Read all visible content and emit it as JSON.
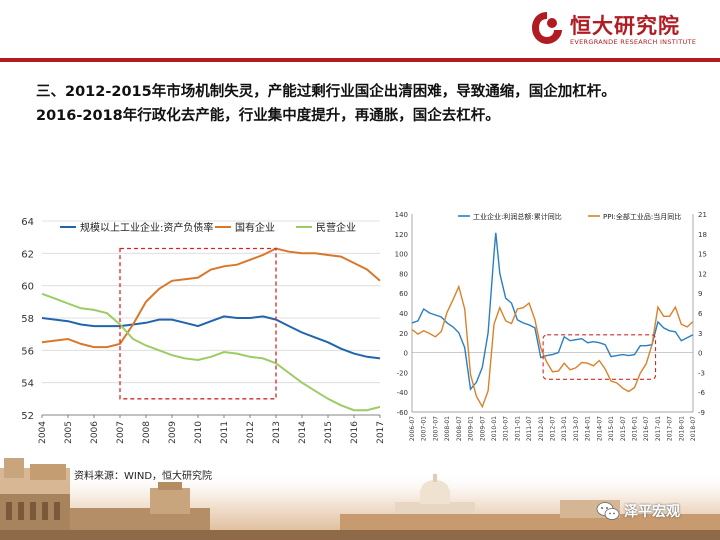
{
  "header": {
    "logo_cn": "恒大研究院",
    "logo_en": "EVERGRANDE RESEARCH INSTITUTE"
  },
  "title": {
    "line1": "三、2012-2015年市场机制失灵，产能过剩行业国企出清困难，导致通缩，国企加杠杆。",
    "line2": "2016-2018年行政化去产能，行业集中度提升，再通胀，国企去杠杆。"
  },
  "source": "资料来源：WIND，恒大研究院",
  "watermark": "泽平宏观",
  "colors": {
    "brand_red": "#b01c22",
    "blue": "#2166ac",
    "orange": "#d9782a",
    "green": "#9ccc65",
    "box_red": "#d62728"
  },
  "chart_data": [
    {
      "type": "line",
      "title": "",
      "xlabel": "",
      "ylabel": "",
      "x": [
        2004,
        2004.5,
        2005,
        2005.5,
        2006,
        2006.5,
        2007,
        2007.5,
        2008,
        2008.5,
        2009,
        2009.5,
        2010,
        2010.5,
        2011,
        2011.5,
        2012,
        2012.5,
        2013,
        2013.5,
        2014,
        2014.5,
        2015,
        2015.5,
        2016,
        2016.5,
        2017
      ],
      "x_ticks": [
        "2004",
        "2005",
        "2006",
        "2007",
        "2008",
        "2009",
        "2010",
        "2011",
        "2012",
        "2013",
        "2014",
        "2015",
        "2016",
        "2017"
      ],
      "ylim": [
        52,
        64
      ],
      "y_ticks": [
        52,
        54,
        56,
        58,
        60,
        62,
        64
      ],
      "grid": "horizontal",
      "legend": "top",
      "series": [
        {
          "name": "规模以上工业企业:资产负债率",
          "color": "#2166ac",
          "values": [
            58.0,
            57.9,
            57.8,
            57.6,
            57.5,
            57.5,
            57.5,
            57.6,
            57.7,
            57.9,
            57.9,
            57.7,
            57.5,
            57.8,
            58.1,
            58.0,
            58.0,
            58.1,
            57.9,
            57.5,
            57.1,
            56.8,
            56.5,
            56.1,
            55.8,
            55.6,
            55.5
          ]
        },
        {
          "name": "国有企业",
          "color": "#d9782a",
          "values": [
            56.5,
            56.6,
            56.7,
            56.4,
            56.2,
            56.2,
            56.4,
            57.6,
            59.0,
            59.8,
            60.3,
            60.4,
            60.5,
            61.0,
            61.2,
            61.3,
            61.6,
            61.9,
            62.3,
            62.1,
            62.0,
            62.0,
            61.9,
            61.8,
            61.4,
            61.0,
            60.3
          ]
        },
        {
          "name": "民营企业",
          "color": "#9ccc65",
          "values": [
            59.5,
            59.2,
            58.9,
            58.6,
            58.5,
            58.3,
            57.6,
            56.7,
            56.3,
            56.0,
            55.7,
            55.5,
            55.4,
            55.6,
            55.9,
            55.8,
            55.6,
            55.5,
            55.2,
            54.6,
            54.0,
            53.5,
            53.0,
            52.6,
            52.3,
            52.3,
            52.5
          ]
        }
      ],
      "annotation": {
        "shape": "dashed-box",
        "x_range": [
          2007,
          2013
        ],
        "y_range": [
          53,
          62.3
        ]
      }
    },
    {
      "type": "line",
      "title": "",
      "xlabel": "",
      "ylabel": "",
      "x_ticks": [
        "2006-07",
        "2007-01",
        "2007-07",
        "2008-01",
        "2008-07",
        "2009-01",
        "2009-07",
        "2010-01",
        "2010-07",
        "2011-01",
        "2011-07",
        "2012-01",
        "2012-07",
        "2013-01",
        "2013-07",
        "2014-01",
        "2014-07",
        "2015-01",
        "2015-07",
        "2016-01",
        "2016-07",
        "2017-01",
        "2017-07",
        "2018-01",
        "2018-07"
      ],
      "ylim_left": [
        -60,
        140
      ],
      "y_ticks_left": [
        -60,
        -40,
        -20,
        0,
        20,
        40,
        60,
        80,
        100,
        120,
        140
      ],
      "ylim_right": [
        -9,
        21
      ],
      "y_ticks_right": [
        -9,
        -6,
        -3,
        0,
        3,
        6,
        9,
        12,
        15,
        18,
        21
      ],
      "legend": "top",
      "series": [
        {
          "name": "工业企业:利润总额:累计同比",
          "axis": "left",
          "color": "#2a7fc1",
          "x": [
            2006.5,
            2006.75,
            2007.0,
            2007.25,
            2007.5,
            2007.75,
            2008.0,
            2008.25,
            2008.5,
            2008.75,
            2009.0,
            2009.25,
            2009.5,
            2009.75,
            2010.0,
            2010.08,
            2010.25,
            2010.5,
            2010.75,
            2011.0,
            2011.25,
            2011.5,
            2011.75,
            2012.0,
            2012.25,
            2012.5,
            2012.75,
            2013.0,
            2013.25,
            2013.5,
            2013.75,
            2014.0,
            2014.25,
            2014.5,
            2014.75,
            2015.0,
            2015.25,
            2015.5,
            2015.75,
            2016.0,
            2016.25,
            2016.5,
            2016.75,
            2017.0,
            2017.25,
            2017.5,
            2017.75,
            2018.0,
            2018.25,
            2018.5
          ],
          "values": [
            30,
            32,
            44,
            40,
            38,
            36,
            30,
            26,
            20,
            5,
            -37,
            -30,
            -15,
            20,
            100,
            121,
            80,
            55,
            50,
            33,
            30,
            28,
            25,
            -5,
            -3,
            -2,
            0,
            16,
            12,
            13,
            14,
            10,
            11,
            10,
            8,
            -4,
            -3,
            -2,
            -3,
            -2,
            7,
            7,
            8,
            31,
            25,
            22,
            21,
            12,
            15,
            18
          ]
        },
        {
          "name": "PPI:全部工业品:当月同比",
          "axis": "right",
          "color": "#d9822b",
          "x": [
            2006.5,
            2006.75,
            2007.0,
            2007.25,
            2007.5,
            2007.75,
            2008.0,
            2008.25,
            2008.5,
            2008.75,
            2009.0,
            2009.25,
            2009.5,
            2009.75,
            2010.0,
            2010.25,
            2010.5,
            2010.75,
            2011.0,
            2011.25,
            2011.5,
            2011.75,
            2012.0,
            2012.25,
            2012.5,
            2012.75,
            2013.0,
            2013.25,
            2013.5,
            2013.75,
            2014.0,
            2014.25,
            2014.5,
            2014.75,
            2015.0,
            2015.25,
            2015.5,
            2015.75,
            2016.0,
            2016.25,
            2016.5,
            2016.75,
            2017.0,
            2017.25,
            2017.5,
            2017.75,
            2018.0,
            2018.25,
            2018.5
          ],
          "values": [
            3.5,
            2.8,
            3.3,
            2.9,
            2.4,
            3.2,
            6.1,
            8.0,
            10.0,
            6.6,
            -3.3,
            -6.6,
            -8.2,
            -5.8,
            4.3,
            6.8,
            4.8,
            4.4,
            6.6,
            6.8,
            7.5,
            5.0,
            0.7,
            -1.4,
            -2.9,
            -2.8,
            -1.6,
            -2.6,
            -2.3,
            -1.5,
            -1.6,
            -2.0,
            -1.2,
            -2.5,
            -4.3,
            -4.6,
            -5.4,
            -5.9,
            -5.3,
            -3.1,
            -1.7,
            1.2,
            6.9,
            5.5,
            5.5,
            6.9,
            4.3,
            3.9,
            4.7
          ]
        }
      ],
      "annotation": {
        "shape": "dashed-box",
        "x_range": [
          2012.1,
          2016.9
        ],
        "y_range": [
          -27,
          18
        ]
      }
    }
  ]
}
